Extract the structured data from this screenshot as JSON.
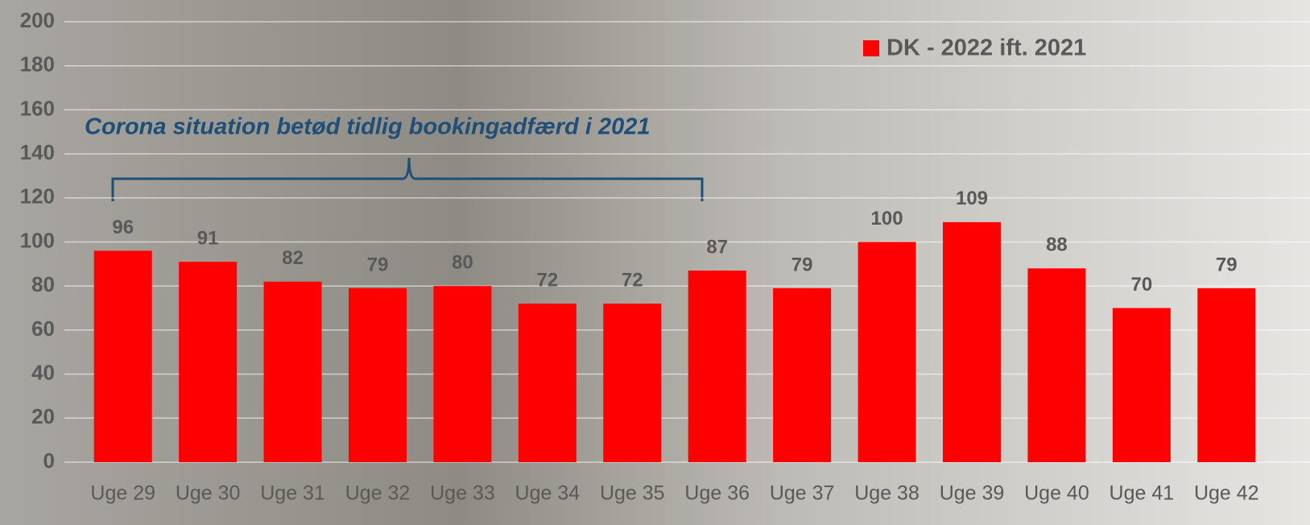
{
  "chart_data": {
    "type": "bar",
    "annotation": "Corona situation betød tidlig bookingadfærd i 2021",
    "categories": [
      "Uge 29",
      "Uge 30",
      "Uge 31",
      "Uge 32",
      "Uge 33",
      "Uge 34",
      "Uge 35",
      "Uge 36",
      "Uge 37",
      "Uge 38",
      "Uge 39",
      "Uge 40",
      "Uge 41",
      "Uge 42"
    ],
    "series": [
      {
        "name": "DK - 2022 ift. 2021",
        "color": "#ff0000",
        "values": [
          96,
          91,
          82,
          79,
          80,
          72,
          72,
          87,
          79,
          100,
          109,
          88,
          70,
          79
        ]
      }
    ],
    "ylim": [
      0,
      200
    ],
    "yticks": [
      0,
      20,
      40,
      60,
      80,
      100,
      120,
      140,
      160,
      180,
      200
    ],
    "grid": true,
    "legend": "top-right"
  }
}
